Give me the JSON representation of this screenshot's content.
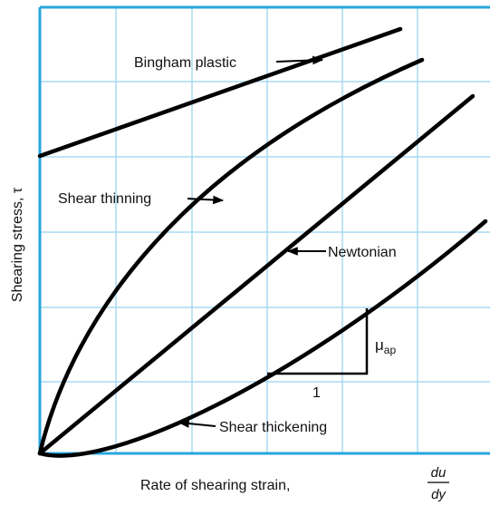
{
  "axes": {
    "x_label": "Rate of shearing strain,",
    "x_label_fraction": {
      "numerator": "du",
      "denominator": "dy"
    },
    "y_label": "Shearing stress, τ"
  },
  "curves": [
    {
      "label": "Bingham plastic"
    },
    {
      "label": "Shear thinning"
    },
    {
      "label": "Newtonian"
    },
    {
      "label": "Shear thickening"
    }
  ],
  "slope": {
    "rise": "μ",
    "rise_subscript": "ap",
    "run": "1"
  }
}
